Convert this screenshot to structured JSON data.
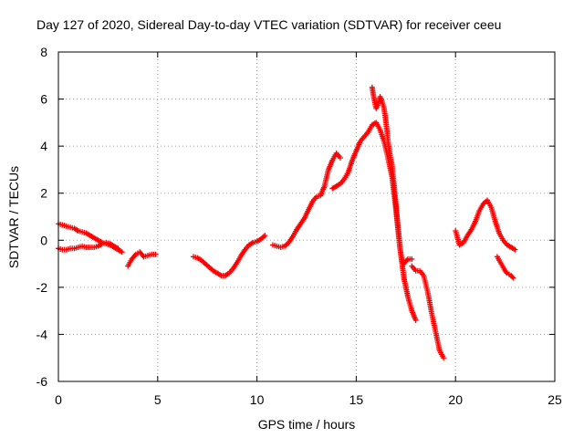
{
  "chart_data": {
    "type": "scatter",
    "title": "Day 127 of 2020, Sidereal Day-to-day VTEC variation (SDTVAR) for receiver ceeu",
    "xlabel": "GPS time / hours",
    "ylabel": "SDTVAR / TECUs",
    "xlim": [
      0,
      25
    ],
    "ylim": [
      -6,
      8
    ],
    "xticks": [
      "0",
      "5",
      "10",
      "15",
      "20",
      "25"
    ],
    "yticks": [
      "-6",
      "-4",
      "-2",
      "0",
      "2",
      "4",
      "6",
      "8"
    ],
    "grid": true,
    "legend": "none",
    "marker": "plus",
    "marker_color": "#ff0000",
    "series": [
      {
        "x": [
          0.0,
          0.2,
          0.4,
          0.6,
          0.8,
          1.0,
          1.2,
          1.4,
          1.6,
          1.8,
          2.0,
          2.2,
          2.4,
          2.6,
          2.8,
          3.0,
          3.2
        ],
        "y": [
          0.7,
          0.65,
          0.6,
          0.55,
          0.5,
          0.4,
          0.35,
          0.3,
          0.2,
          0.1,
          0.0,
          -0.1,
          -0.15,
          -0.2,
          -0.3,
          -0.4,
          -0.5
        ]
      },
      {
        "x": [
          0.0,
          0.2,
          0.4,
          0.6,
          0.8,
          1.0,
          1.2,
          1.4,
          1.6,
          1.8,
          2.0,
          2.2,
          2.4,
          2.6,
          2.8,
          3.0
        ],
        "y": [
          -0.35,
          -0.4,
          -0.4,
          -0.35,
          -0.35,
          -0.3,
          -0.25,
          -0.3,
          -0.3,
          -0.3,
          -0.25,
          -0.15,
          -0.1,
          -0.15,
          -0.25,
          -0.35
        ]
      },
      {
        "x": [
          3.5,
          3.6,
          3.7,
          3.8,
          3.9,
          4.0,
          4.1,
          4.2,
          4.3,
          4.5,
          4.7,
          4.9
        ],
        "y": [
          -1.1,
          -0.95,
          -0.8,
          -0.7,
          -0.6,
          -0.55,
          -0.5,
          -0.6,
          -0.7,
          -0.65,
          -0.6,
          -0.6
        ]
      },
      {
        "x": [
          6.8,
          7.0,
          7.2,
          7.4,
          7.6,
          7.8,
          8.0,
          8.2,
          8.4,
          8.6,
          8.8,
          9.0,
          9.2,
          9.4,
          9.6,
          9.8,
          10.0,
          10.2,
          10.4
        ],
        "y": [
          -0.7,
          -0.75,
          -0.85,
          -1.0,
          -1.15,
          -1.3,
          -1.4,
          -1.5,
          -1.5,
          -1.4,
          -1.2,
          -0.95,
          -0.65,
          -0.4,
          -0.2,
          -0.1,
          -0.05,
          0.05,
          0.2
        ]
      },
      {
        "x": [
          10.8,
          11.0,
          11.2,
          11.4,
          11.6,
          11.8,
          12.0,
          12.2,
          12.4,
          12.6,
          12.8,
          13.0,
          13.2,
          13.4,
          13.6,
          13.8,
          14.0,
          14.2
        ],
        "y": [
          -0.2,
          -0.25,
          -0.3,
          -0.25,
          -0.1,
          0.15,
          0.45,
          0.7,
          0.95,
          1.3,
          1.65,
          1.85,
          1.9,
          2.3,
          3.0,
          3.4,
          3.7,
          3.5
        ]
      },
      {
        "x": [
          13.8,
          14.0,
          14.2,
          14.4,
          14.6,
          14.8,
          15.0,
          15.2,
          15.4,
          15.6,
          15.8,
          16.0,
          16.2,
          16.4,
          16.6,
          16.8,
          17.0,
          17.2,
          17.4,
          17.6,
          17.8,
          18.0
        ],
        "y": [
          2.2,
          2.3,
          2.4,
          2.6,
          2.9,
          3.4,
          3.8,
          4.2,
          4.4,
          4.6,
          4.9,
          5.0,
          4.7,
          4.2,
          3.5,
          2.7,
          1.3,
          -0.3,
          -1.6,
          -2.4,
          -3.0,
          -3.4
        ]
      },
      {
        "x": [
          15.8,
          15.9,
          16.0,
          16.1,
          16.2,
          16.3,
          16.4,
          16.5,
          16.6,
          16.7,
          16.8,
          16.9,
          17.0,
          17.1,
          17.2,
          17.3,
          17.4,
          17.5,
          17.6,
          17.7,
          17.8
        ],
        "y": [
          6.5,
          6.0,
          5.6,
          5.8,
          6.1,
          5.9,
          5.6,
          5.0,
          4.2,
          3.6,
          3.2,
          2.4,
          1.5,
          0.6,
          -0.3,
          -0.9,
          -1.0,
          -0.9,
          -0.8,
          -0.8,
          -0.8
        ]
      },
      {
        "x": [
          17.8,
          18.0,
          18.2,
          18.4,
          18.6,
          18.8,
          19.0,
          19.2,
          19.4
        ],
        "y": [
          -1.1,
          -1.3,
          -1.3,
          -1.5,
          -2.2,
          -3.1,
          -3.9,
          -4.7,
          -5.0
        ]
      },
      {
        "x": [
          20.0,
          20.2,
          20.4,
          20.6,
          20.8,
          21.0,
          21.2,
          21.4,
          21.6,
          21.8,
          22.0,
          22.2,
          22.4,
          22.6,
          22.8,
          23.0
        ],
        "y": [
          0.4,
          -0.2,
          -0.1,
          0.2,
          0.45,
          0.8,
          1.25,
          1.55,
          1.7,
          1.4,
          0.8,
          0.3,
          0.0,
          -0.2,
          -0.3,
          -0.4
        ]
      },
      {
        "x": [
          22.1,
          22.2,
          22.3,
          22.4,
          22.5,
          22.6,
          22.7,
          22.8,
          22.9
        ],
        "y": [
          -0.7,
          -0.85,
          -1.0,
          -1.15,
          -1.3,
          -1.4,
          -1.45,
          -1.5,
          -1.6
        ]
      }
    ]
  }
}
